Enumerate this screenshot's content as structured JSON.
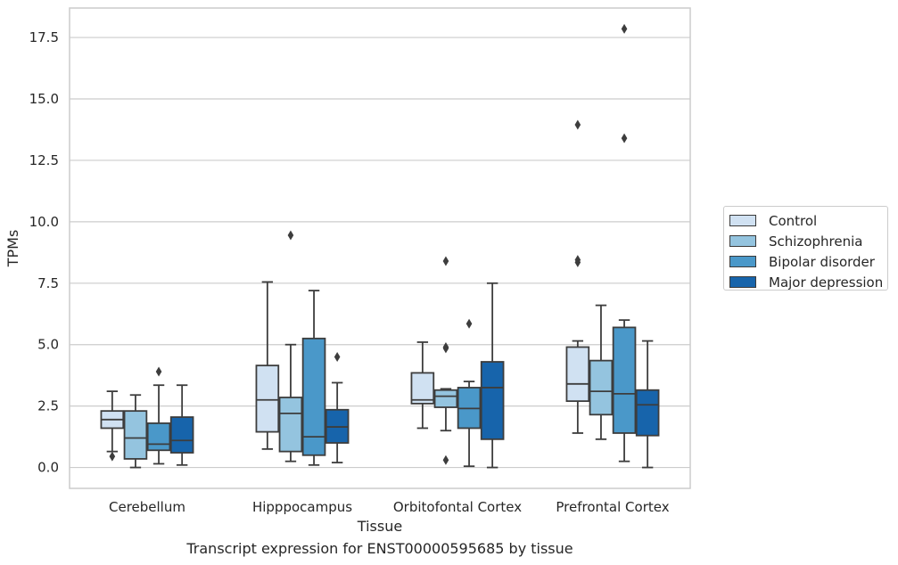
{
  "caption": "Transcript expression for ENST00000595685 by tissue",
  "chart_data": {
    "type": "boxplot",
    "xlabel": "Tissue",
    "ylabel": "TPMs",
    "ylim": [
      -0.85,
      18.7
    ],
    "yticks": [
      0.0,
      2.5,
      5.0,
      7.5,
      10.0,
      12.5,
      15.0,
      17.5
    ],
    "ytick_labels": [
      "0.0",
      "2.5",
      "5.0",
      "7.5",
      "10.0",
      "12.5",
      "15.0",
      "17.5"
    ],
    "grid": "horizontal",
    "legend_position": "right",
    "categories": [
      "Cerebellum",
      "Hipppocampus",
      "Orbitofontal Cortex",
      "Prefrontal Cortex"
    ],
    "series": [
      {
        "name": "Control",
        "color": "#d0e1f2",
        "boxes": [
          {
            "whislo": 0.65,
            "q1": 1.6,
            "med": 1.95,
            "q3": 2.3,
            "whishi": 3.1,
            "fliers": [
              0.45
            ]
          },
          {
            "whislo": 0.75,
            "q1": 1.45,
            "med": 2.75,
            "q3": 4.15,
            "whishi": 7.55,
            "fliers": []
          },
          {
            "whislo": 1.6,
            "q1": 2.6,
            "med": 2.75,
            "q3": 3.85,
            "whishi": 5.1,
            "fliers": []
          },
          {
            "whislo": 1.4,
            "q1": 2.7,
            "med": 3.4,
            "q3": 4.9,
            "whishi": 5.15,
            "fliers": [
              8.35,
              8.45,
              13.95
            ]
          }
        ]
      },
      {
        "name": "Schizophrenia",
        "color": "#94c4df",
        "boxes": [
          {
            "whislo": 0.0,
            "q1": 0.35,
            "med": 1.2,
            "q3": 2.3,
            "whishi": 2.95,
            "fliers": []
          },
          {
            "whislo": 0.25,
            "q1": 0.65,
            "med": 2.2,
            "q3": 2.85,
            "whishi": 5.0,
            "fliers": [
              9.45
            ]
          },
          {
            "whislo": 1.5,
            "q1": 2.45,
            "med": 2.9,
            "q3": 3.15,
            "whishi": 3.2,
            "fliers": [
              0.3,
              4.9,
              4.85,
              8.4
            ]
          },
          {
            "whislo": 1.15,
            "q1": 2.15,
            "med": 3.1,
            "q3": 4.35,
            "whishi": 6.6,
            "fliers": []
          }
        ]
      },
      {
        "name": "Bipolar disorder",
        "color": "#4a98c9",
        "boxes": [
          {
            "whislo": 0.15,
            "q1": 0.7,
            "med": 0.95,
            "q3": 1.8,
            "whishi": 3.35,
            "fliers": [
              3.9
            ]
          },
          {
            "whislo": 0.1,
            "q1": 0.5,
            "med": 1.25,
            "q3": 5.25,
            "whishi": 7.2,
            "fliers": []
          },
          {
            "whislo": 0.05,
            "q1": 1.6,
            "med": 2.4,
            "q3": 3.25,
            "whishi": 3.5,
            "fliers": [
              5.85
            ]
          },
          {
            "whislo": 0.25,
            "q1": 1.4,
            "med": 3.0,
            "q3": 5.7,
            "whishi": 6.0,
            "fliers": [
              13.4,
              17.85
            ]
          }
        ]
      },
      {
        "name": "Major depression",
        "color": "#1764ab",
        "boxes": [
          {
            "whislo": 0.1,
            "q1": 0.6,
            "med": 1.1,
            "q3": 2.05,
            "whishi": 3.35,
            "fliers": []
          },
          {
            "whislo": 0.2,
            "q1": 1.0,
            "med": 1.65,
            "q3": 2.35,
            "whishi": 3.45,
            "fliers": [
              4.5
            ]
          },
          {
            "whislo": 0.0,
            "q1": 1.15,
            "med": 3.25,
            "q3": 4.3,
            "whishi": 7.5,
            "fliers": []
          },
          {
            "whislo": 0.0,
            "q1": 1.3,
            "med": 2.55,
            "q3": 3.15,
            "whishi": 5.15,
            "fliers": []
          }
        ]
      }
    ]
  }
}
